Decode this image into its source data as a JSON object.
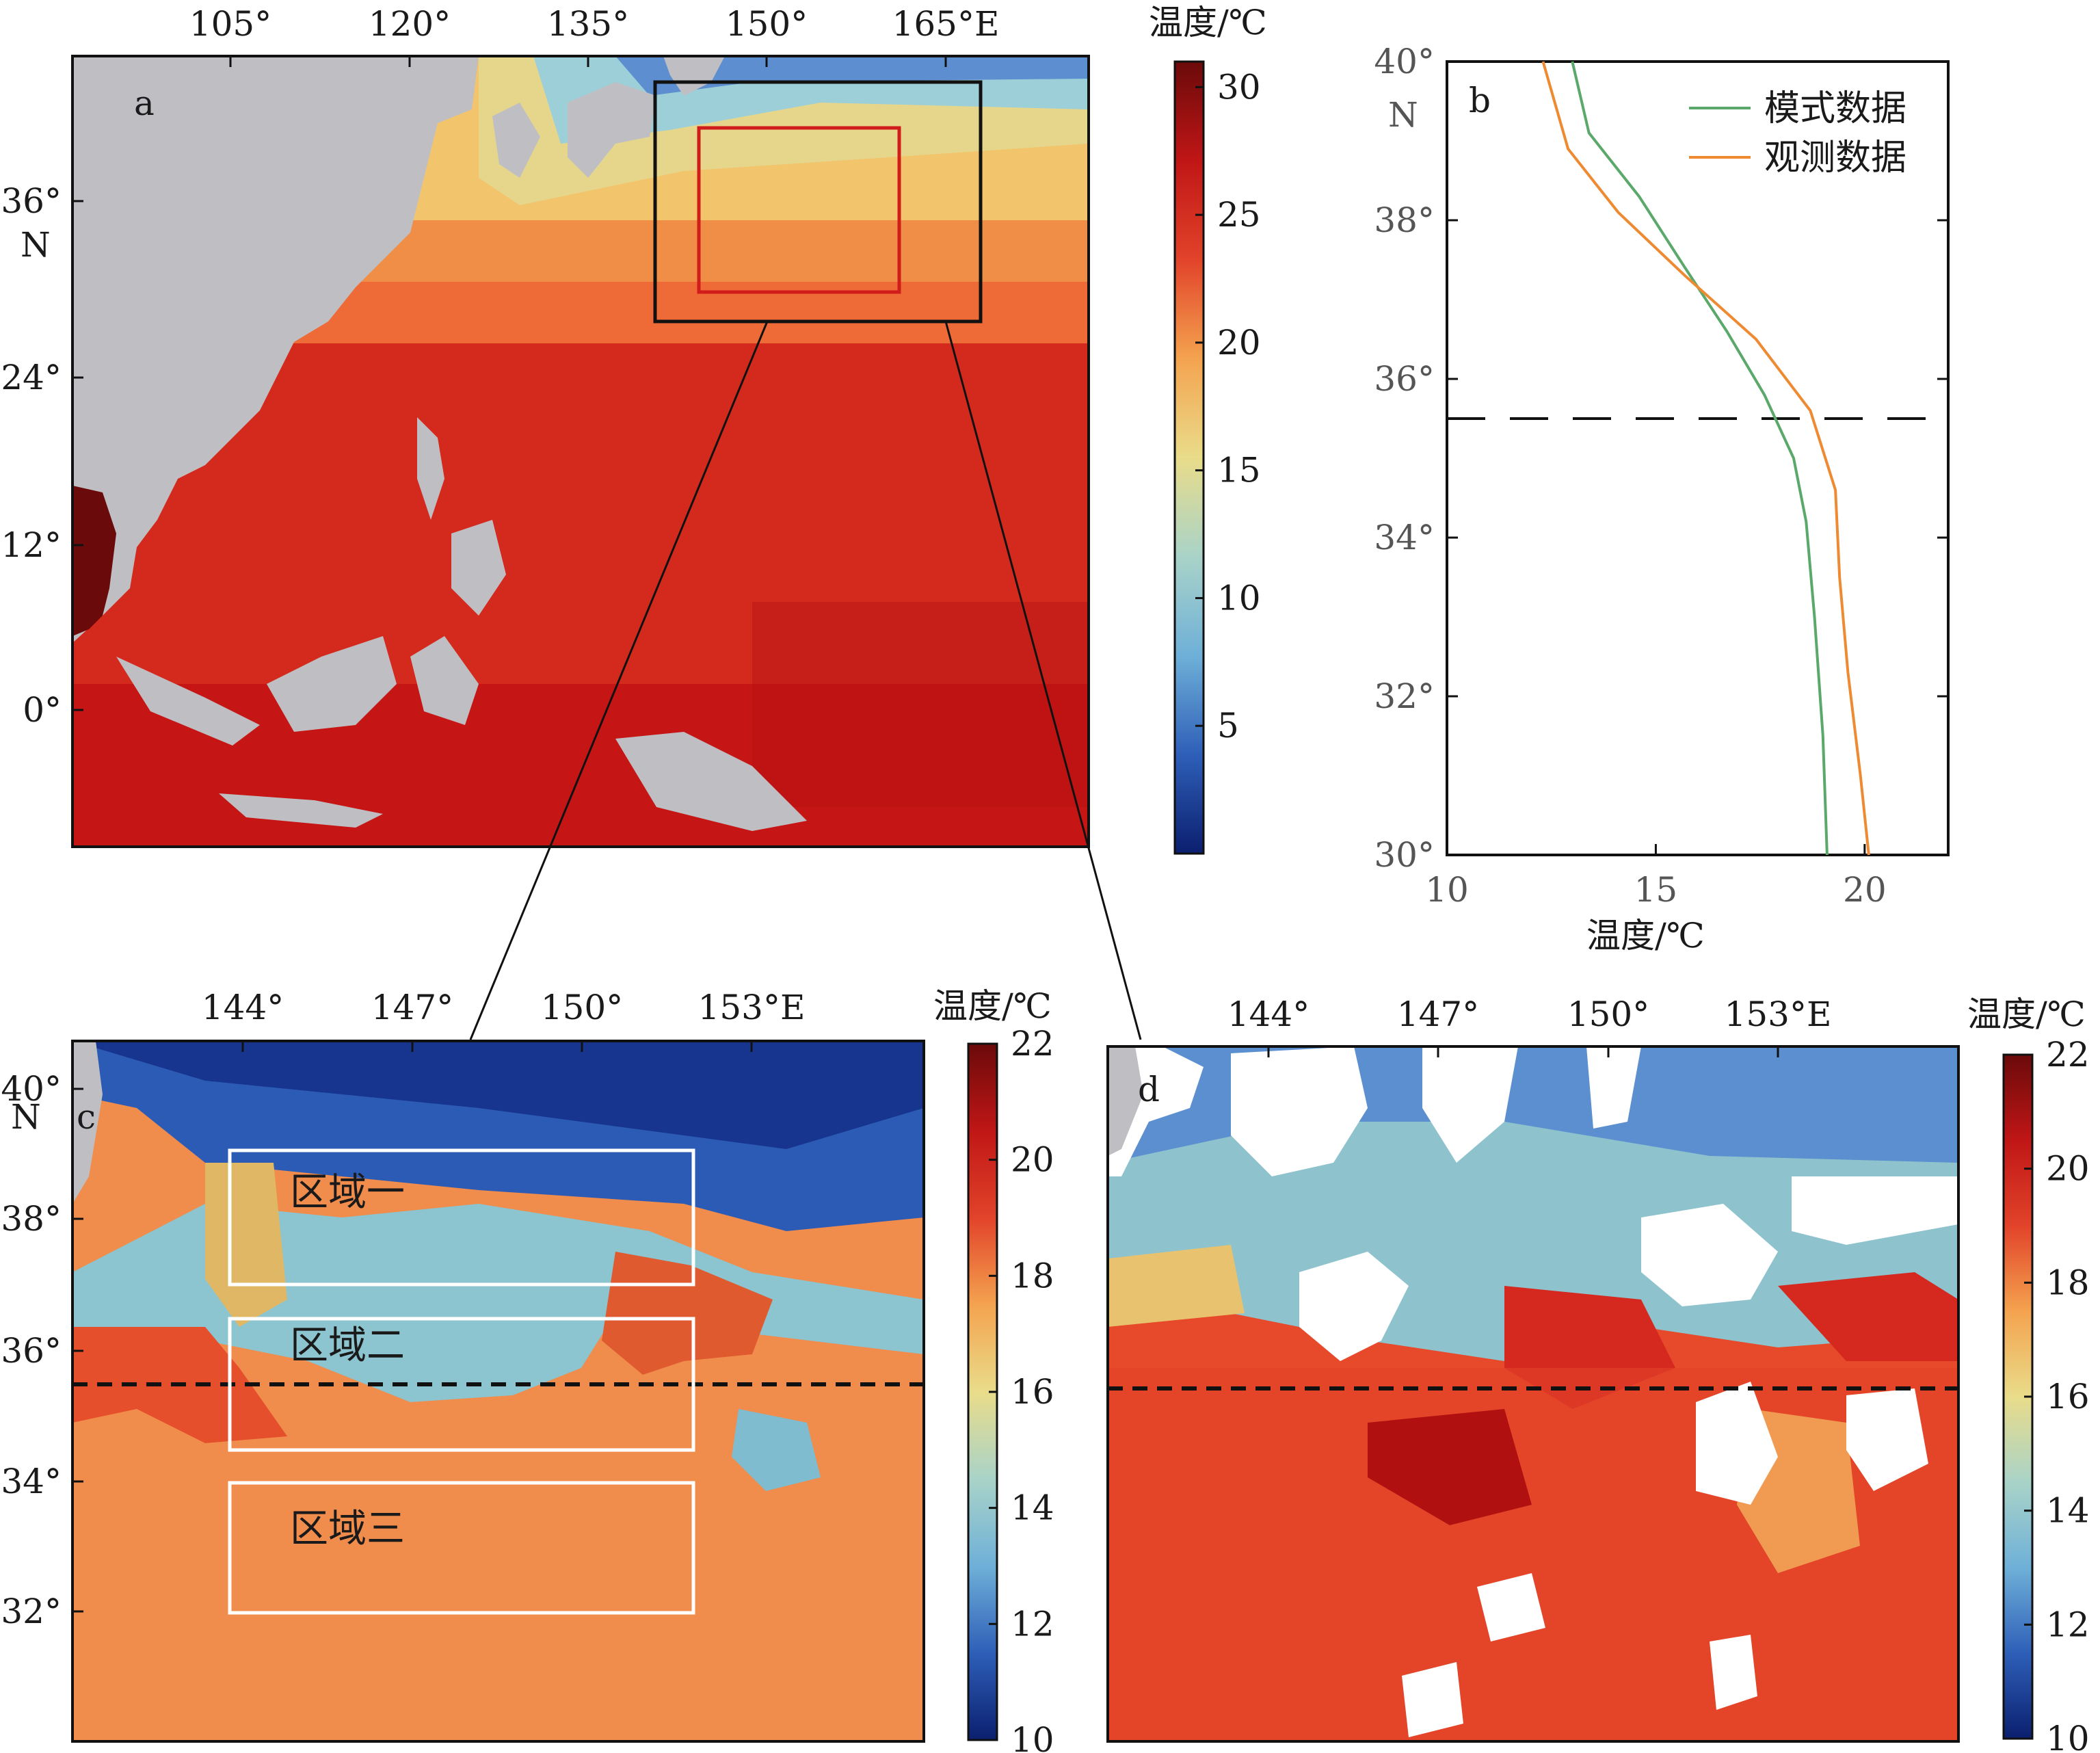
{
  "colors": {
    "land": "#bfbfc3",
    "model": "#5aa86a",
    "obs": "#ee8a32",
    "box_black": "#111111",
    "box_red": "#d11c1c",
    "box_white": "#ffffff"
  },
  "colormap_stops": [
    "#0b1f6e",
    "#2e5fb8",
    "#6fb0d8",
    "#a9d3c8",
    "#e9dc8a",
    "#f4a34f",
    "#e2432a",
    "#c01616",
    "#6b0a0a"
  ],
  "panel_a": {
    "label": "a",
    "x_ticks": [
      "105°",
      "120°",
      "135°",
      "150°",
      "165°E"
    ],
    "y_ticks": [
      "36°",
      "24°",
      "12°",
      "0°"
    ],
    "y_unit": "N",
    "colorbar": {
      "title": "温度/℃",
      "ticks": [
        "30",
        "25",
        "20",
        "15",
        "10",
        "5"
      ],
      "range": [
        0,
        31
      ]
    }
  },
  "panel_b": {
    "label": "b",
    "x_ticks": [
      "10",
      "15",
      "20"
    ],
    "y_ticks": [
      "40°",
      "38°",
      "36°",
      "34°",
      "32°",
      "30°"
    ],
    "y_unit": "N",
    "xlabel": "温度/℃"
  },
  "panel_c": {
    "label": "c",
    "x_ticks": [
      "144°",
      "147°",
      "150°",
      "153°E"
    ],
    "y_ticks": [
      "40°",
      "38°",
      "36°",
      "34°",
      "32°"
    ],
    "y_unit": "N",
    "regions": [
      "区域一",
      "区域二",
      "区域三"
    ],
    "colorbar": {
      "title": "温度/℃",
      "ticks": [
        "22",
        "20",
        "18",
        "16",
        "14",
        "12",
        "10"
      ],
      "range": [
        10,
        22
      ]
    }
  },
  "panel_d": {
    "label": "d",
    "x_ticks": [
      "144°",
      "147°",
      "150°",
      "153°E"
    ],
    "colorbar": {
      "title": "温度/℃",
      "ticks": [
        "22",
        "20",
        "18",
        "16",
        "14",
        "12",
        "10"
      ],
      "range": [
        10,
        22
      ]
    }
  },
  "chart_data": {
    "type": "line",
    "title": "",
    "xlabel": "温度/℃",
    "ylabel": "",
    "xlim": [
      10,
      22
    ],
    "ylim": [
      30,
      40
    ],
    "xticks": [
      10,
      15,
      20
    ],
    "yticks": [
      30,
      32,
      34,
      36,
      38,
      40
    ],
    "legend_position": "top-right",
    "reference_line_lat": 35.5,
    "series": [
      {
        "name": "模式数据",
        "color": "#5aa86a",
        "points": [
          [
            13.0,
            40.0
          ],
          [
            13.4,
            39.1
          ],
          [
            14.6,
            38.3
          ],
          [
            15.7,
            37.4
          ],
          [
            16.7,
            36.6
          ],
          [
            17.6,
            35.8
          ],
          [
            18.3,
            35.0
          ],
          [
            18.6,
            34.2
          ],
          [
            18.8,
            33.0
          ],
          [
            19.0,
            31.5
          ],
          [
            19.1,
            30.0
          ]
        ]
      },
      {
        "name": "观测数据",
        "color": "#ee8a32",
        "points": [
          [
            12.3,
            40.0
          ],
          [
            12.9,
            38.9
          ],
          [
            14.1,
            38.1
          ],
          [
            15.7,
            37.3
          ],
          [
            17.4,
            36.5
          ],
          [
            18.7,
            35.6
          ],
          [
            19.3,
            34.6
          ],
          [
            19.4,
            33.5
          ],
          [
            19.6,
            32.3
          ],
          [
            19.9,
            31.0
          ],
          [
            20.1,
            30.0
          ]
        ]
      }
    ]
  }
}
